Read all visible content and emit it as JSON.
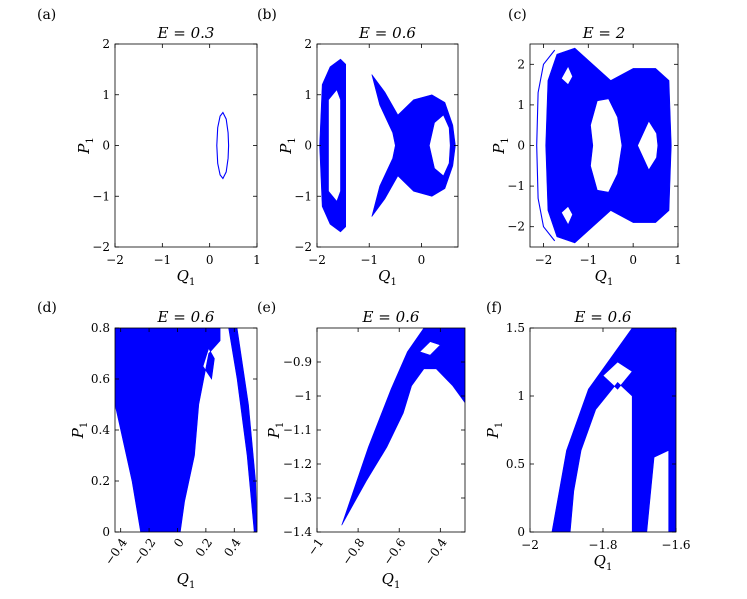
{
  "chart_data": [
    {
      "panel_label": "(a)",
      "type": "scatter",
      "title": "E = 0.3",
      "xlabel": "Q1",
      "ylabel": "P1",
      "xlim": [
        -2,
        1
      ],
      "ylim": [
        -2,
        2
      ],
      "xticks": [
        -2,
        -1,
        0,
        1
      ],
      "xtick_labels": [
        "−2",
        "−1",
        "0",
        "1"
      ],
      "yticks": [
        -2,
        -1,
        0,
        1,
        2
      ],
      "ytick_labels": [
        "−2",
        "−1",
        "0",
        "1",
        "2"
      ],
      "color": "#0000ff",
      "regions": [
        {
          "kind": "curve",
          "points": [
            [
              0.15,
              0
            ],
            [
              0.17,
              0.35
            ],
            [
              0.22,
              0.58
            ],
            [
              0.28,
              0.65
            ],
            [
              0.35,
              0.52
            ],
            [
              0.39,
              0.25
            ],
            [
              0.4,
              0
            ],
            [
              0.39,
              -0.25
            ],
            [
              0.35,
              -0.52
            ],
            [
              0.28,
              -0.65
            ],
            [
              0.22,
              -0.58
            ],
            [
              0.17,
              -0.35
            ],
            [
              0.15,
              0
            ]
          ]
        }
      ]
    },
    {
      "panel_label": "(b)",
      "type": "scatter",
      "title": "E = 0.6",
      "xlabel": "Q1",
      "ylabel": "P1",
      "xlim": [
        -2,
        0.7
      ],
      "ylim": [
        -2,
        2
      ],
      "xticks": [
        -2,
        -1,
        0
      ],
      "xtick_labels": [
        "−2",
        "−1",
        "0"
      ],
      "yticks": [
        -2,
        -1,
        0,
        1,
        2
      ],
      "ytick_labels": [
        "−2",
        "−1",
        "0",
        "1",
        "2"
      ],
      "color": "#0000ff",
      "regions": [
        {
          "kind": "filled",
          "points": [
            [
              -1.9,
              1.2
            ],
            [
              -1.75,
              1.55
            ],
            [
              -1.55,
              1.7
            ],
            [
              -1.45,
              1.6
            ],
            [
              -1.45,
              -1.6
            ],
            [
              -1.55,
              -1.7
            ],
            [
              -1.75,
              -1.55
            ],
            [
              -1.9,
              -1.2
            ],
            [
              -1.95,
              0
            ]
          ]
        },
        {
          "kind": "hole",
          "points": [
            [
              -1.78,
              0.9
            ],
            [
              -1.62,
              1.1
            ],
            [
              -1.55,
              0.9
            ],
            [
              -1.55,
              -0.9
            ],
            [
              -1.62,
              -1.1
            ],
            [
              -1.78,
              -0.9
            ]
          ]
        },
        {
          "kind": "filled",
          "points": [
            [
              -0.95,
              1.4
            ],
            [
              -0.7,
              1.05
            ],
            [
              -0.45,
              0.6
            ],
            [
              -0.15,
              0.9
            ],
            [
              0.2,
              1.0
            ],
            [
              0.45,
              0.85
            ],
            [
              0.6,
              0.4
            ],
            [
              0.65,
              0
            ],
            [
              0.6,
              -0.4
            ],
            [
              0.45,
              -0.85
            ],
            [
              0.2,
              -1.0
            ],
            [
              -0.15,
              -0.9
            ],
            [
              -0.45,
              -0.6
            ],
            [
              -0.7,
              -1.05
            ],
            [
              -0.95,
              -1.4
            ],
            [
              -0.8,
              -0.8
            ],
            [
              -0.55,
              -0.25
            ],
            [
              -0.5,
              0
            ],
            [
              -0.55,
              0.25
            ],
            [
              -0.8,
              0.8
            ]
          ]
        },
        {
          "kind": "hole",
          "points": [
            [
              0.15,
              0
            ],
            [
              0.25,
              0.45
            ],
            [
              0.42,
              0.6
            ],
            [
              0.53,
              0.35
            ],
            [
              0.55,
              0
            ],
            [
              0.53,
              -0.35
            ],
            [
              0.42,
              -0.6
            ],
            [
              0.25,
              -0.45
            ]
          ]
        }
      ]
    },
    {
      "panel_label": "(c)",
      "type": "scatter",
      "title": "E = 2",
      "xlabel": "Q1",
      "ylabel": "P1",
      "xlim": [
        -2.3,
        1
      ],
      "ylim": [
        -2.5,
        2.5
      ],
      "xticks": [
        -2,
        -1,
        0,
        1
      ],
      "xtick_labels": [
        "−2",
        "−1",
        "0",
        "1"
      ],
      "yticks": [
        -2,
        -1,
        0,
        1,
        2
      ],
      "ytick_labels": [
        "−2",
        "−1",
        "0",
        "1",
        "2"
      ],
      "color": "#0000ff",
      "regions": [
        {
          "kind": "filled",
          "points": [
            [
              -1.95,
              0
            ],
            [
              -1.9,
              1.6
            ],
            [
              -1.7,
              2.25
            ],
            [
              -1.3,
              2.4
            ],
            [
              -0.9,
              2.0
            ],
            [
              -0.5,
              1.6
            ],
            [
              0,
              1.9
            ],
            [
              0.5,
              1.9
            ],
            [
              0.8,
              1.6
            ],
            [
              0.85,
              0
            ],
            [
              0.8,
              -1.6
            ],
            [
              0.5,
              -1.9
            ],
            [
              0,
              -1.9
            ],
            [
              -0.5,
              -1.6
            ],
            [
              -0.9,
              -2.0
            ],
            [
              -1.3,
              -2.4
            ],
            [
              -1.7,
              -2.25
            ],
            [
              -1.9,
              -1.6
            ]
          ]
        },
        {
          "kind": "hole",
          "points": [
            [
              -0.95,
              0.5
            ],
            [
              -0.8,
              1.1
            ],
            [
              -0.55,
              1.15
            ],
            [
              -0.35,
              0.7
            ],
            [
              -0.25,
              0
            ],
            [
              -0.35,
              -0.7
            ],
            [
              -0.55,
              -1.15
            ],
            [
              -0.8,
              -1.1
            ],
            [
              -0.95,
              -0.5
            ],
            [
              -0.9,
              0
            ]
          ]
        },
        {
          "kind": "hole",
          "points": [
            [
              0.1,
              0
            ],
            [
              0.35,
              0.6
            ],
            [
              0.52,
              0.3
            ],
            [
              0.55,
              0
            ],
            [
              0.52,
              -0.3
            ],
            [
              0.35,
              -0.6
            ]
          ]
        },
        {
          "kind": "hole",
          "points": [
            [
              -1.6,
              1.65
            ],
            [
              -1.45,
              1.95
            ],
            [
              -1.35,
              1.7
            ],
            [
              -1.45,
              1.5
            ]
          ]
        },
        {
          "kind": "hole",
          "points": [
            [
              -1.6,
              -1.65
            ],
            [
              -1.45,
              -1.95
            ],
            [
              -1.35,
              -1.7
            ],
            [
              -1.45,
              -1.5
            ]
          ]
        },
        {
          "kind": "curve",
          "points": [
            [
              -2.15,
              0
            ],
            [
              -2.12,
              1.3
            ],
            [
              -2.0,
              2.0
            ],
            [
              -1.75,
              2.35
            ]
          ]
        },
        {
          "kind": "curve",
          "points": [
            [
              -2.15,
              0
            ],
            [
              -2.12,
              -1.3
            ],
            [
              -2.0,
              -2.0
            ],
            [
              -1.75,
              -2.35
            ]
          ]
        }
      ]
    },
    {
      "panel_label": "(d)",
      "type": "scatter",
      "title": "E = 0.6",
      "xlabel": "Q1",
      "ylabel": "P1",
      "xlim": [
        -0.44,
        0.56
      ],
      "ylim": [
        0,
        0.8
      ],
      "xticks": [
        -0.4,
        -0.2,
        0,
        0.2,
        0.4
      ],
      "xtick_labels": [
        "−0.4",
        "−0.2",
        "0",
        "0.2",
        "0.4"
      ],
      "yticks": [
        0,
        0.2,
        0.4,
        0.6,
        0.8
      ],
      "ytick_labels": [
        "0",
        "0.2",
        "0.4",
        "0.6",
        "0.8"
      ],
      "color": "#0000ff",
      "regions": [
        {
          "kind": "filled",
          "points": [
            [
              -0.44,
              0.8
            ],
            [
              0.3,
              0.8
            ],
            [
              0.3,
              0.75
            ],
            [
              0.22,
              0.7
            ],
            [
              0.15,
              0.5
            ],
            [
              0.12,
              0.3
            ],
            [
              0.05,
              0.12
            ],
            [
              0.02,
              0
            ],
            [
              -0.26,
              0
            ],
            [
              -0.32,
              0.2
            ],
            [
              -0.4,
              0.4
            ],
            [
              -0.44,
              0.5
            ]
          ]
        },
        {
          "kind": "hole",
          "points": [
            [
              0.18,
              0.65
            ],
            [
              0.22,
              0.72
            ],
            [
              0.26,
              0.68
            ],
            [
              0.24,
              0.6
            ]
          ]
        },
        {
          "kind": "filled",
          "points": [
            [
              0.36,
              0.8
            ],
            [
              0.42,
              0.8
            ],
            [
              0.5,
              0.5
            ],
            [
              0.55,
              0.2
            ],
            [
              0.56,
              0
            ],
            [
              0.54,
              0
            ],
            [
              0.49,
              0.3
            ],
            [
              0.42,
              0.6
            ]
          ]
        }
      ]
    },
    {
      "panel_label": "(e)",
      "type": "scatter",
      "title": "E = 0.6",
      "xlabel": "Q1",
      "ylabel": "P1",
      "xlim": [
        -1,
        -0.28
      ],
      "ylim": [
        -1.4,
        -0.8
      ],
      "xticks": [
        -1,
        -0.8,
        -0.6,
        -0.4
      ],
      "xtick_labels": [
        "−1",
        "−0.8",
        "−0.6",
        "−0.4"
      ],
      "yticks": [
        -1.4,
        -1.3,
        -1.2,
        -1.1,
        -1,
        -0.9
      ],
      "ytick_labels": [
        "−1.4",
        "−1.3",
        "−1.2",
        "−1.1",
        "−1",
        "−0.9"
      ],
      "color": "#0000ff",
      "regions": [
        {
          "kind": "filled",
          "points": [
            [
              -0.88,
              -1.38
            ],
            [
              -0.75,
              -1.15
            ],
            [
              -0.64,
              -0.98
            ],
            [
              -0.56,
              -0.87
            ],
            [
              -0.48,
              -0.8
            ],
            [
              -0.28,
              -0.8
            ],
            [
              -0.28,
              -1.02
            ],
            [
              -0.34,
              -0.97
            ],
            [
              -0.42,
              -0.92
            ],
            [
              -0.48,
              -0.92
            ],
            [
              -0.54,
              -0.97
            ],
            [
              -0.58,
              -1.05
            ],
            [
              -0.66,
              -1.15
            ],
            [
              -0.76,
              -1.25
            ]
          ]
        },
        {
          "kind": "hole",
          "points": [
            [
              -0.5,
              -0.87
            ],
            [
              -0.45,
              -0.84
            ],
            [
              -0.4,
              -0.85
            ],
            [
              -0.45,
              -0.88
            ]
          ]
        }
      ]
    },
    {
      "panel_label": "(f)",
      "type": "scatter",
      "title": "E = 0.6",
      "xlabel": "Q1",
      "ylabel": "P1",
      "xlim": [
        -2,
        -1.6
      ],
      "ylim": [
        0,
        1.5
      ],
      "xticks": [
        -2,
        -1.8,
        -1.6
      ],
      "xtick_labels": [
        "−2",
        "−1.8",
        "−1.6"
      ],
      "yticks": [
        0,
        0.5,
        1,
        1.5
      ],
      "ytick_labels": [
        "0",
        "0.5",
        "1",
        "1.5"
      ],
      "color": "#0000ff",
      "regions": [
        {
          "kind": "filled",
          "points": [
            [
              -1.94,
              0
            ],
            [
              -1.9,
              0.6
            ],
            [
              -1.84,
              1.05
            ],
            [
              -1.76,
              1.35
            ],
            [
              -1.72,
              1.5
            ],
            [
              -1.6,
              1.5
            ],
            [
              -1.6,
              0
            ],
            [
              -1.62,
              0
            ],
            [
              -1.62,
              0.6
            ],
            [
              -1.66,
              0.55
            ],
            [
              -1.68,
              0
            ],
            [
              -1.72,
              0
            ],
            [
              -1.72,
              1.0
            ],
            [
              -1.76,
              1.1
            ],
            [
              -1.82,
              0.9
            ],
            [
              -1.86,
              0.6
            ],
            [
              -1.88,
              0.3
            ],
            [
              -1.89,
              0
            ]
          ]
        },
        {
          "kind": "hole",
          "points": [
            [
              -1.8,
              1.15
            ],
            [
              -1.76,
              1.25
            ],
            [
              -1.72,
              1.18
            ],
            [
              -1.76,
              1.05
            ]
          ]
        }
      ]
    }
  ]
}
